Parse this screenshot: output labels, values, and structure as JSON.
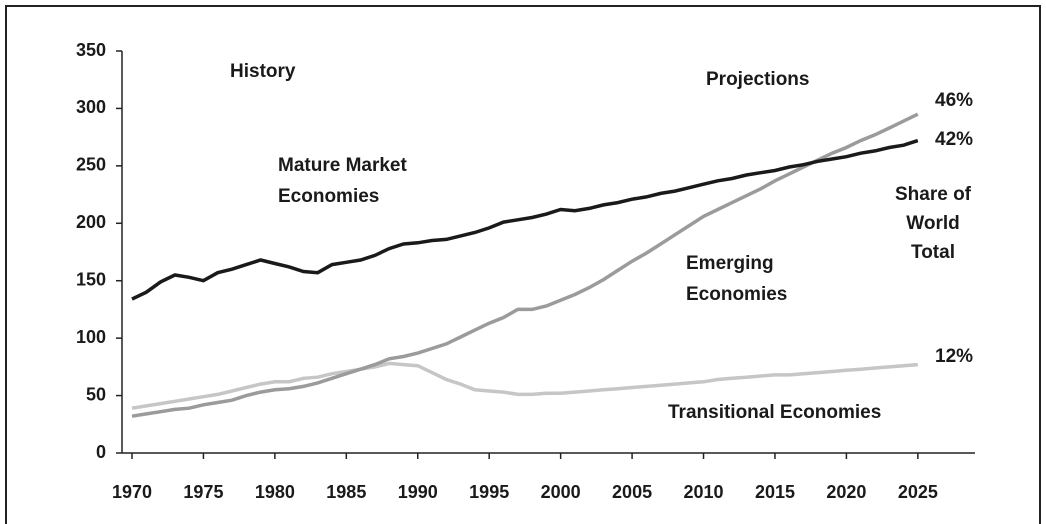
{
  "chart_data": {
    "type": "line",
    "x": [
      1970,
      1971,
      1972,
      1973,
      1974,
      1975,
      1976,
      1977,
      1978,
      1979,
      1980,
      1981,
      1982,
      1983,
      1984,
      1985,
      1986,
      1987,
      1988,
      1989,
      1990,
      1991,
      1992,
      1993,
      1994,
      1995,
      1996,
      1997,
      1998,
      1999,
      2000,
      2001,
      2002,
      2003,
      2004,
      2005,
      2006,
      2007,
      2008,
      2009,
      2010,
      2011,
      2012,
      2013,
      2014,
      2015,
      2016,
      2017,
      2018,
      2019,
      2020,
      2021,
      2022,
      2023,
      2024,
      2025
    ],
    "series": [
      {
        "name": "Mature Market Economies",
        "color": "#1a1a1a",
        "values": [
          134,
          140,
          149,
          155,
          153,
          150,
          157,
          160,
          164,
          168,
          165,
          162,
          158,
          157,
          164,
          166,
          168,
          172,
          178,
          182,
          183,
          185,
          186,
          189,
          192,
          196,
          201,
          203,
          205,
          208,
          212,
          211,
          213,
          216,
          218,
          221,
          223,
          226,
          228,
          231,
          234,
          237,
          239,
          242,
          244,
          246,
          249,
          251,
          254,
          256,
          258,
          261,
          263,
          266,
          268,
          272
        ]
      },
      {
        "name": "Emerging Economies",
        "color": "#9b9b9b",
        "values": [
          32,
          34,
          36,
          38,
          39,
          42,
          44,
          46,
          50,
          53,
          55,
          56,
          58,
          61,
          65,
          69,
          73,
          77,
          82,
          84,
          87,
          91,
          95,
          101,
          107,
          113,
          118,
          125,
          125,
          128,
          133,
          138,
          144,
          151,
          159,
          167,
          174,
          182,
          190,
          198,
          206,
          212,
          218,
          224,
          230,
          237,
          243,
          249,
          255,
          261,
          266,
          272,
          277,
          283,
          289,
          295
        ]
      },
      {
        "name": "Transitional Economies",
        "color": "#c6c6c6",
        "values": [
          39,
          41,
          43,
          45,
          47,
          49,
          51,
          54,
          57,
          60,
          62,
          62,
          65,
          66,
          69,
          71,
          73,
          75,
          78,
          77,
          76,
          70,
          64,
          60,
          55,
          54,
          53,
          51,
          51,
          52,
          52,
          53,
          54,
          55,
          56,
          57,
          58,
          59,
          60,
          61,
          62,
          64,
          65,
          66,
          67,
          68,
          68,
          69,
          70,
          71,
          72,
          73,
          74,
          75,
          76,
          77
        ]
      }
    ],
    "xlim": [
      1969,
      2029
    ],
    "xticks": [
      1970,
      1975,
      1980,
      1985,
      1990,
      1995,
      2000,
      2005,
      2010,
      2015,
      2020,
      2025
    ],
    "ylim": [
      0,
      350
    ],
    "yticks": [
      0,
      50,
      100,
      150,
      200,
      250,
      300,
      350
    ],
    "annotations": [
      {
        "text": [
          "History"
        ]
      },
      {
        "text": [
          "Projections"
        ]
      },
      {
        "text": [
          "Mature Market",
          "Economies"
        ]
      },
      {
        "text": [
          "Emerging",
          "Economies"
        ]
      },
      {
        "text": [
          "Transitional Economies"
        ]
      },
      {
        "text": [
          "Share of",
          "World",
          "Total"
        ]
      },
      {
        "text": [
          "46%"
        ]
      },
      {
        "text": [
          "42%"
        ]
      },
      {
        "text": [
          "12%"
        ]
      }
    ]
  }
}
